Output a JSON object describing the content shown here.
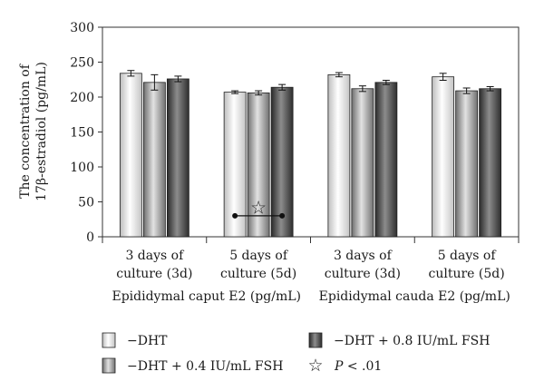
{
  "chart_data": {
    "type": "bar",
    "ylabel_lines": [
      "The concentration of",
      "17β-estradiol (pg/mL)"
    ],
    "ylim": [
      0,
      300
    ],
    "yticks": [
      0,
      50,
      100,
      150,
      200,
      250,
      300
    ],
    "grid": false,
    "categories": [
      [
        "3 days of",
        "culture (3d)"
      ],
      [
        "5 days of",
        "culture (5d)"
      ],
      [
        "3 days of",
        "culture (3d)"
      ],
      [
        "5 days of",
        "culture (5d)"
      ]
    ],
    "groups": [
      "Epididymal caput E2 (pg/mL)",
      "Epididymal cauda E2 (pg/mL)"
    ],
    "series": [
      {
        "name": "−DHT",
        "values": [
          234,
          207,
          232,
          229
        ],
        "errors": [
          4,
          2,
          3,
          5
        ],
        "color": "#e6e6e6"
      },
      {
        "name": "−DHT + 0.4 IU/mL FSH",
        "values": [
          221,
          206,
          212,
          209
        ],
        "errors": [
          11,
          3,
          4,
          4
        ],
        "color": "#a6a6a6"
      },
      {
        "name": "−DHT + 0.8 IU/mL FSH",
        "values": [
          226,
          214,
          221,
          212
        ],
        "errors": [
          4,
          4,
          3,
          3
        ],
        "color": "#555555"
      }
    ],
    "annotation": {
      "symbol": "☆",
      "category_index": 1,
      "from_series": 0,
      "to_series": 2,
      "y": 30,
      "marker_y": 42
    },
    "legend": {
      "placement": "bottom",
      "items": [
        "−DHT",
        "−DHT + 0.4 IU/mL FSH",
        "−DHT + 0.8 IU/mL FSH"
      ],
      "significance_label": "P < .01"
    }
  }
}
